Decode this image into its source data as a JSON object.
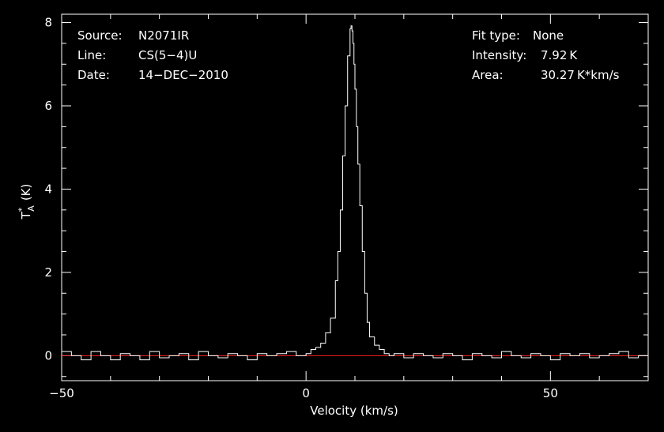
{
  "chart_data": {
    "type": "line",
    "xlabel": "Velocity (km/s)",
    "ylabel": "T",
    "ylabel_sup": "*",
    "ylabel_sub": "A",
    "ylabel_unit": "(K)",
    "xlim": [
      -50,
      70
    ],
    "ylim": [
      -0.6,
      8.2
    ],
    "x_ticks": [
      -50,
      0,
      50
    ],
    "y_ticks": [
      0,
      2,
      4,
      6,
      8
    ],
    "baseline": 0,
    "colors": {
      "background": "#000000",
      "line": "#ffffff",
      "axes": "#ffffff",
      "baseline": "#ff2020"
    },
    "annotations_left": [
      {
        "key": "Source:",
        "value": "N2071IR"
      },
      {
        "key": "Line:",
        "value": "CS(5−4)U"
      },
      {
        "key": "Date:",
        "value": "14−DEC−2010"
      }
    ],
    "annotations_right": [
      {
        "key": "Fit type:",
        "value": "None"
      },
      {
        "key": "Intensity:",
        "value": "7.92 K"
      },
      {
        "key": "Area:",
        "value": "30.27 K*km/s"
      }
    ],
    "series": [
      {
        "x": [
          -50,
          -48,
          -46,
          -44,
          -42,
          -40,
          -38,
          -36,
          -34,
          -32,
          -30,
          -28,
          -26,
          -24,
          -22,
          -20,
          -18,
          -16,
          -14,
          -12,
          -10,
          -8,
          -6,
          -4,
          -2,
          0,
          1,
          2,
          3,
          4,
          5,
          6,
          6.5,
          7,
          7.5,
          8,
          8.5,
          9,
          9.2,
          9.4,
          9.6,
          9.8,
          10,
          10.3,
          10.6,
          11,
          11.5,
          12,
          12.5,
          13,
          14,
          15,
          16,
          17,
          18,
          20,
          22,
          24,
          26,
          28,
          30,
          32,
          34,
          36,
          38,
          40,
          42,
          44,
          46,
          48,
          50,
          52,
          54,
          56,
          58,
          60,
          62,
          64,
          66,
          68,
          70
        ],
        "y": [
          0.1,
          0.0,
          -0.1,
          0.1,
          0.0,
          -0.1,
          0.05,
          0.0,
          -0.1,
          0.1,
          -0.05,
          0.0,
          0.05,
          -0.1,
          0.1,
          0.0,
          -0.05,
          0.05,
          0.0,
          -0.1,
          0.05,
          0.0,
          0.05,
          0.1,
          0.0,
          0.05,
          0.15,
          0.2,
          0.3,
          0.55,
          0.9,
          1.8,
          2.5,
          3.5,
          4.8,
          6.0,
          7.2,
          7.85,
          7.92,
          7.8,
          7.5,
          7.0,
          6.4,
          5.5,
          4.6,
          3.6,
          2.5,
          1.5,
          0.8,
          0.45,
          0.25,
          0.15,
          0.05,
          0.0,
          0.05,
          -0.05,
          0.05,
          0.0,
          -0.05,
          0.05,
          0.0,
          -0.1,
          0.05,
          0.0,
          -0.05,
          0.1,
          0.0,
          -0.05,
          0.05,
          0.0,
          -0.1,
          0.05,
          0.0,
          0.05,
          -0.05,
          0.0,
          0.05,
          0.1,
          -0.05,
          0.0,
          0.05
        ]
      }
    ]
  }
}
